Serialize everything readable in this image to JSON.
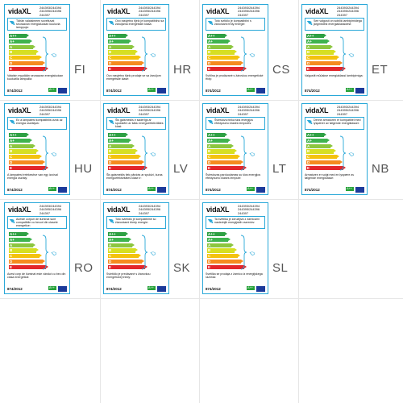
{
  "brand": "vidaXL",
  "models": "244393/244394\n244395/244396\n244397",
  "regulation": "874/2012",
  "class_letters": [
    "A++",
    "A+",
    "A",
    "B",
    "C",
    "D",
    "E"
  ],
  "class_colors": [
    "#2ea043",
    "#3fb34f",
    "#8cc63f",
    "#d6df23",
    "#f4c20d",
    "#f58b1f",
    "#e3262b"
  ],
  "lamp_class": "A++",
  "labels": [
    {
      "code": "FI",
      "top": "Tähän valaisimeen soveltuvat seuraavan energialuokan kuuluvia lamppuja:",
      "bottom": "Valaisin myydään seuraavan energialuokan kuuluvilla lampuilla:"
    },
    {
      "code": "HR",
      "top": "Ovo rasvjetno tijelo je kompatibilno sa žaruljama energetskih klasa:",
      "bottom": "Ovo rasvjetno tijelo prodaje se sa žaruljom energetske klase:"
    },
    {
      "code": "CS",
      "top": "Toto svítidlo je kompatibilní s žárovkami třídy energie:",
      "bottom": "Svítilna je prodávané s žárovkou energetické třídy:"
    },
    {
      "code": "ET",
      "top": "See valgusti on sobilik lambipirnidega järgmistest energiaklassidest:",
      "bottom": "Valgustit müüakse energiaklassi lambipirniga:"
    },
    {
      "code": "HU",
      "top": "Ez a lámpatest kompatibilis izzók az energia osztályok:",
      "bottom": "A lámpatest értékesítve van egy izzóval energia osztály:"
    },
    {
      "code": "LV",
      "top": "Šis gaismeklis ir saderīgs ar spuldzēm ar šādu energoefektivitātes klasi:",
      "bottom": "Šis gaismeklis tiek pārdots ar spuldzi, kuras energoefektivitātes klase ir:"
    },
    {
      "code": "LT",
      "top": "Šviestuvui tinka šios energijos efektyvumo klasės lemputės:",
      "bottom": "Šviestuvas parduodamas su šios energijos efektyvumo klasės lempute:"
    },
    {
      "code": "NB",
      "top": "Denne armaturen er kompatibel med lyspærer av følgende energiklasser:",
      "bottom": "Armaturen er solgt med en lyspære av følgende energiklasse:"
    },
    {
      "code": "RO",
      "top": "Aceste corpuri de iluminat sunt compatibile cu becuri din clasele energetice:",
      "bottom": "Acest corp de iluminat este vândut cu bec din clasa energetică:"
    },
    {
      "code": "SK",
      "top": "Toto svietidlo je kompatibilné so žiarovkami triedy energie:",
      "bottom": "Svietidlo je predávané s žiarovkou energetickej triedy:"
    },
    {
      "code": "SL",
      "top": "Ta svetilka je združljiva z žarnicami naslednjih energijskih razredov:",
      "bottom": "Svetilka se prodaja z žarnico iz energijskega razreda:"
    }
  ]
}
